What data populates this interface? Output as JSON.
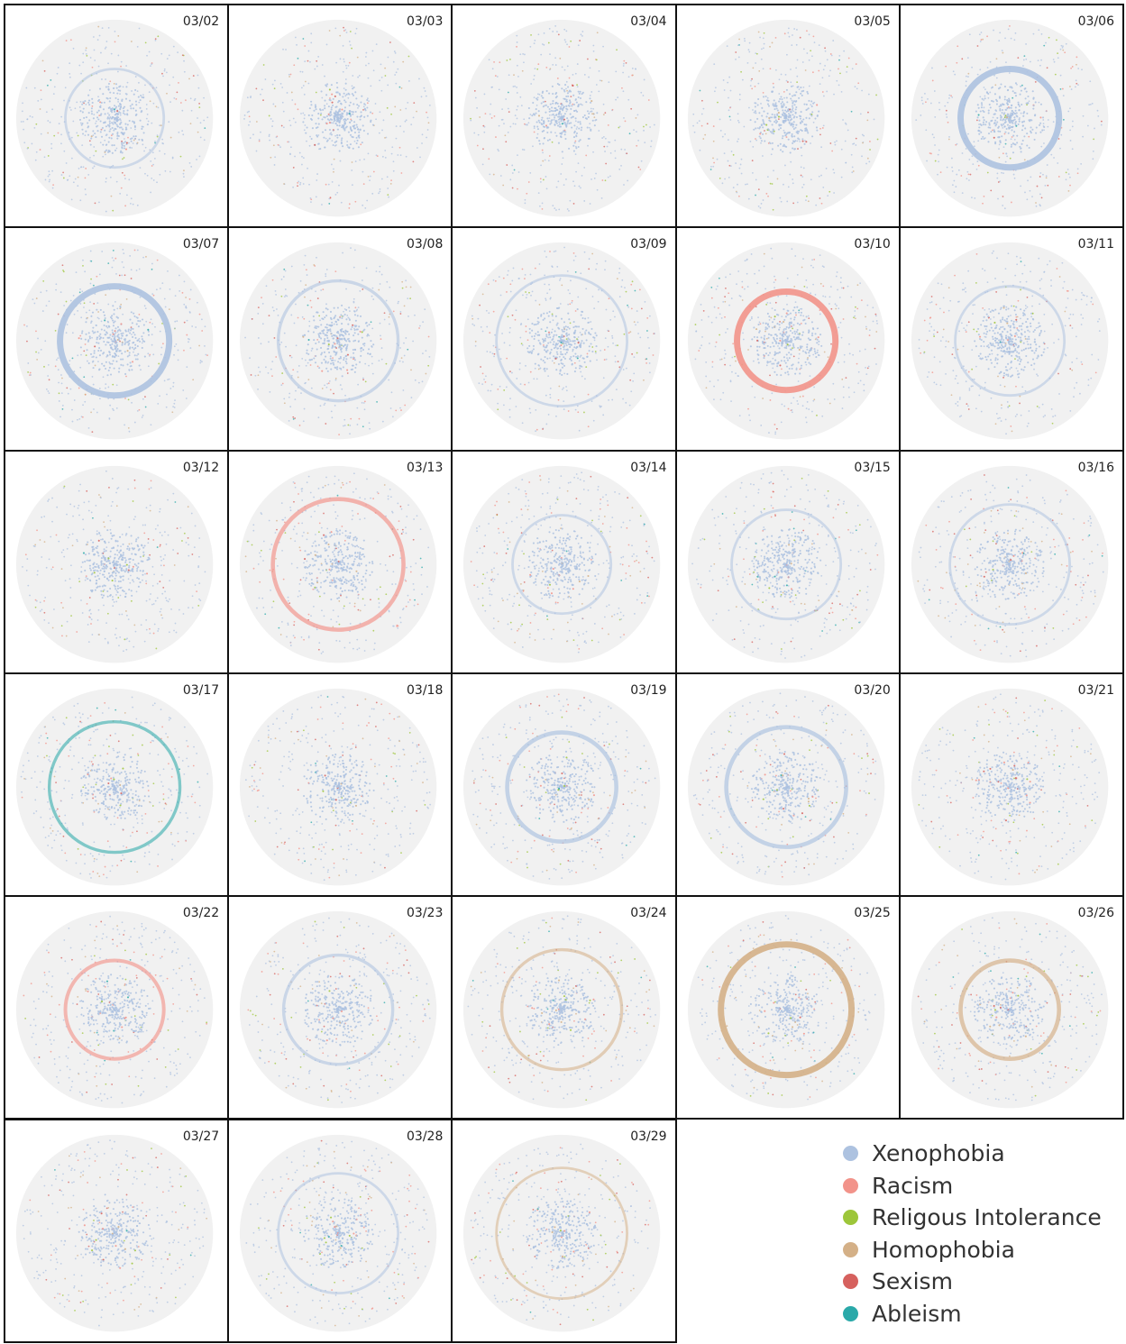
{
  "chart_data": {
    "type": "scatter",
    "description_layout": "small multiples of network graphs, one per day",
    "panels": [
      {
        "date": "03/02",
        "ring": {
          "category": "Xenophobia",
          "strength": 0.3
        }
      },
      {
        "date": "03/03",
        "ring": null
      },
      {
        "date": "03/04",
        "ring": null
      },
      {
        "date": "03/05",
        "ring": null
      },
      {
        "date": "03/06",
        "ring": {
          "category": "Xenophobia",
          "strength": 1.0
        }
      },
      {
        "date": "03/07",
        "ring": {
          "category": "Xenophobia",
          "strength": 1.0
        }
      },
      {
        "date": "03/08",
        "ring": {
          "category": "Xenophobia",
          "strength": 0.4
        }
      },
      {
        "date": "03/09",
        "ring": {
          "category": "Xenophobia",
          "strength": 0.3
        }
      },
      {
        "date": "03/10",
        "ring": {
          "category": "Racism",
          "strength": 1.0
        }
      },
      {
        "date": "03/11",
        "ring": {
          "category": "Xenophobia",
          "strength": 0.3
        }
      },
      {
        "date": "03/12",
        "ring": null
      },
      {
        "date": "03/13",
        "ring": {
          "category": "Racism",
          "strength": 0.6
        }
      },
      {
        "date": "03/14",
        "ring": {
          "category": "Xenophobia",
          "strength": 0.3
        }
      },
      {
        "date": "03/15",
        "ring": {
          "category": "Xenophobia",
          "strength": 0.3
        }
      },
      {
        "date": "03/16",
        "ring": {
          "category": "Xenophobia",
          "strength": 0.3
        }
      },
      {
        "date": "03/17",
        "ring": {
          "category": "Ableism",
          "strength": 0.4
        }
      },
      {
        "date": "03/18",
        "ring": null
      },
      {
        "date": "03/19",
        "ring": {
          "category": "Xenophobia",
          "strength": 0.6
        }
      },
      {
        "date": "03/20",
        "ring": {
          "category": "Xenophobia",
          "strength": 0.6
        }
      },
      {
        "date": "03/21",
        "ring": null
      },
      {
        "date": "03/22",
        "ring": {
          "category": "Racism",
          "strength": 0.5
        }
      },
      {
        "date": "03/23",
        "ring": {
          "category": "Xenophobia",
          "strength": 0.4
        }
      },
      {
        "date": "03/24",
        "ring": {
          "category": "Homophobia",
          "strength": 0.4
        }
      },
      {
        "date": "03/25",
        "ring": {
          "category": "Homophobia",
          "strength": 1.0
        }
      },
      {
        "date": "03/26",
        "ring": {
          "category": "Homophobia",
          "strength": 0.6
        }
      },
      {
        "date": "03/27",
        "ring": null
      },
      {
        "date": "03/28",
        "ring": {
          "category": "Xenophobia",
          "strength": 0.3
        }
      },
      {
        "date": "03/29",
        "ring": {
          "category": "Homophobia",
          "strength": 0.3
        }
      }
    ],
    "legend": [
      {
        "name": "Xenophobia",
        "color": "#adc2e0"
      },
      {
        "name": "Racism",
        "color": "#f2938a"
      },
      {
        "name": "Religous Intolerance",
        "color": "#9dc63a"
      },
      {
        "name": "Homophobia",
        "color": "#d4b087"
      },
      {
        "name": "Sexism",
        "color": "#d6615e"
      },
      {
        "name": "Ableism",
        "color": "#2aa9a9"
      }
    ],
    "legend_placement": "bottom-right"
  }
}
